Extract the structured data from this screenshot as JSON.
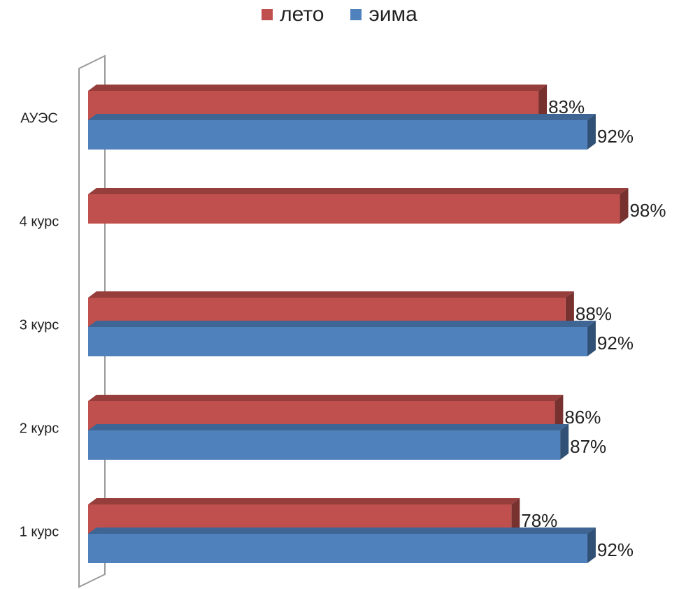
{
  "chart_data": {
    "type": "bar",
    "orientation": "horizontal",
    "categories": [
      "АУЭС",
      "4 курс",
      "3 курс",
      "2 курс",
      "1 курс"
    ],
    "series": [
      {
        "name": "лето",
        "color": "#c0504d",
        "values": [
          83,
          98,
          88,
          86,
          78
        ],
        "labels": [
          "83%",
          "98%",
          "88%",
          "86%",
          "78%"
        ]
      },
      {
        "name": "эима",
        "color": "#4f81bd",
        "values": [
          92,
          null,
          92,
          87,
          92
        ],
        "labels": [
          "92%",
          "",
          "92%",
          "87%",
          "92%"
        ]
      }
    ],
    "xlim": [
      0,
      100
    ],
    "grid": false,
    "legend_position": "top",
    "style": "3d"
  }
}
